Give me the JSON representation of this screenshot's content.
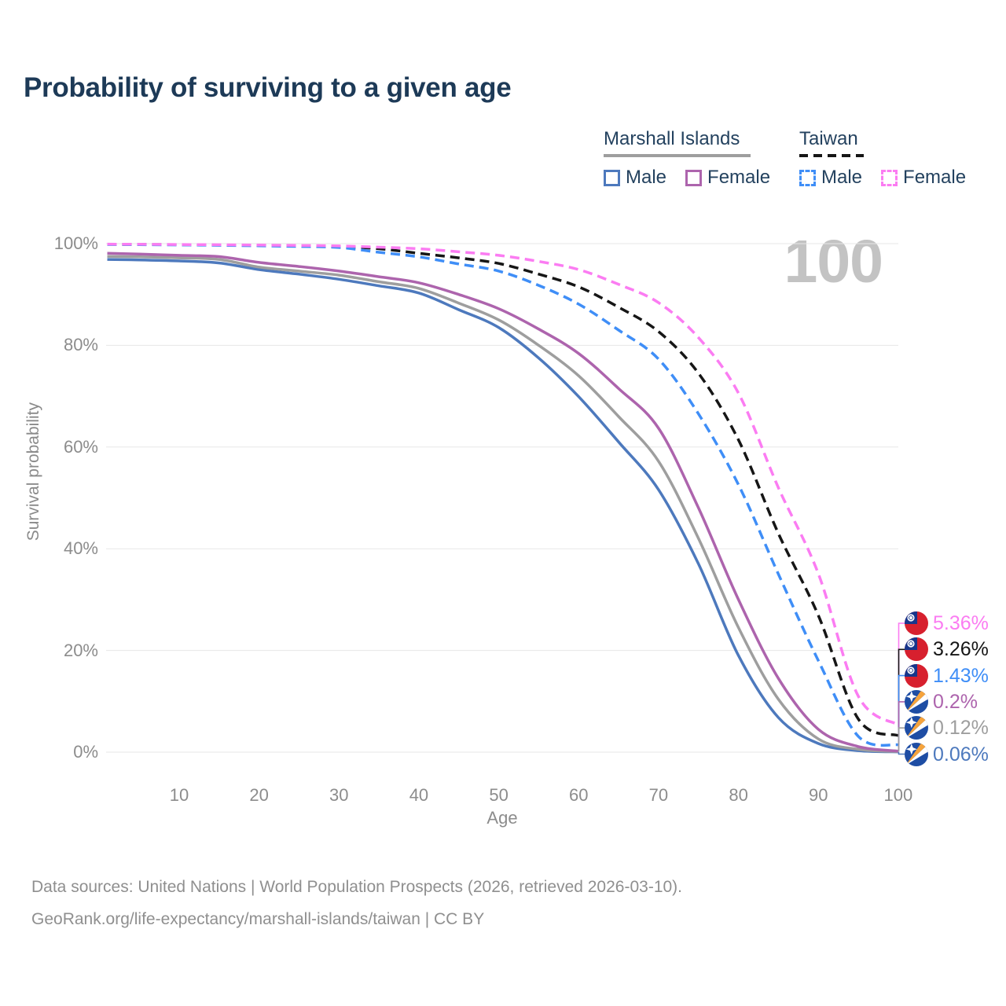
{
  "watermark": "100",
  "legend": {
    "groups": [
      {
        "label": "Marshall Islands",
        "line_style": "solid",
        "line_color": "#9e9e9e",
        "items": [
          {
            "label": "Male",
            "color": "#4d79bd"
          },
          {
            "label": "Female",
            "color": "#ad64ad"
          }
        ]
      },
      {
        "label": "Taiwan",
        "line_style": "dashed",
        "line_color": "#161616",
        "items": [
          {
            "label": "Male",
            "color": "#3f8ef7"
          },
          {
            "label": "Female",
            "color": "#fb7cf2"
          }
        ]
      }
    ]
  },
  "chart_data": {
    "type": "line",
    "title": "Probability of surviving to a given age",
    "xlabel": "Age",
    "ylabel": "Survival probability",
    "xlim": [
      0,
      100
    ],
    "ylim": [
      0,
      100
    ],
    "x_ticks": [
      10,
      20,
      30,
      40,
      50,
      60,
      70,
      80,
      90,
      100
    ],
    "y_ticks": [
      0,
      20,
      40,
      60,
      80,
      100
    ],
    "y_tick_suffix": "%",
    "grid": "horizontal",
    "legend_position": "top-right",
    "x": [
      1,
      5,
      10,
      15,
      20,
      25,
      30,
      35,
      40,
      45,
      50,
      55,
      60,
      65,
      70,
      75,
      80,
      85,
      90,
      95,
      100
    ],
    "series": [
      {
        "name": "Taiwan Both sexes",
        "country": "Taiwan",
        "sex": "Both sexes",
        "color": "#161616",
        "dashed": true,
        "flag": "taiwan",
        "end_label": "3.26%",
        "values": [
          99.87,
          99.84,
          99.8,
          99.74,
          99.66,
          99.56,
          99.42,
          99.0,
          98.1,
          97.2,
          96.1,
          94.0,
          91.5,
          87.5,
          82.7,
          74.5,
          61.4,
          43.0,
          26.9,
          6.5,
          3.26
        ]
      },
      {
        "name": "Taiwan Male",
        "country": "Taiwan",
        "sex": "Male",
        "color": "#3f8ef7",
        "dashed": true,
        "flag": "taiwan",
        "end_label": "1.43%",
        "values": [
          99.83,
          99.8,
          99.75,
          99.68,
          99.58,
          99.44,
          99.25,
          98.3,
          97.4,
          96.0,
          94.6,
          91.8,
          88.1,
          83.0,
          77.3,
          66.5,
          52.6,
          35.0,
          18.0,
          3.1,
          1.43
        ]
      },
      {
        "name": "Taiwan Female",
        "country": "Taiwan",
        "sex": "Female",
        "color": "#fb7cf2",
        "dashed": true,
        "flag": "taiwan",
        "end_label": "5.36%",
        "values": [
          99.9,
          99.87,
          99.83,
          99.78,
          99.72,
          99.65,
          99.55,
          99.3,
          99.0,
          98.4,
          97.7,
          96.5,
          94.9,
          92.0,
          88.4,
          81.5,
          70.6,
          52.0,
          35.1,
          11.0,
          5.36
        ]
      },
      {
        "name": "Marshall Islands Male",
        "country": "Marshall Islands",
        "sex": "Male",
        "color": "#4d79bd",
        "dashed": false,
        "flag": "marshall-islands",
        "end_label": "0.06%",
        "values": [
          96.9,
          96.8,
          96.6,
          96.2,
          94.9,
          94.0,
          93.0,
          91.7,
          90.3,
          87.0,
          83.5,
          77.5,
          69.9,
          61.0,
          51.6,
          37.0,
          19.0,
          6.8,
          1.7,
          0.3,
          0.06
        ]
      },
      {
        "name": "Marshall Islands Both sexes",
        "country": "Marshall Islands",
        "sex": "Both sexes",
        "color": "#9e9e9e",
        "dashed": false,
        "flag": "marshall-islands",
        "end_label": "0.12%",
        "values": [
          97.5,
          97.4,
          97.2,
          96.9,
          95.4,
          94.6,
          93.8,
          92.5,
          91.2,
          88.3,
          85.0,
          80.0,
          74.0,
          66.0,
          57.2,
          42.0,
          24.5,
          10.4,
          2.6,
          0.55,
          0.12
        ]
      },
      {
        "name": "Marshall Islands Female",
        "country": "Marshall Islands",
        "sex": "Female",
        "color": "#ad64ad",
        "dashed": false,
        "flag": "marshall-islands",
        "end_label": "0.2%",
        "values": [
          98.1,
          97.95,
          97.7,
          97.45,
          96.3,
          95.5,
          94.6,
          93.5,
          92.3,
          90.0,
          87.2,
          83.2,
          78.4,
          71.5,
          63.7,
          48.0,
          30.0,
          14.5,
          4.5,
          1.1,
          0.2
        ]
      }
    ]
  },
  "footer": {
    "line1": "Data sources: United Nations | World Population Prospects (2026, retrieved 2026-03-10).",
    "line2": "GeoRank.org/life-expectancy/marshall-islands/taiwan | CC BY"
  }
}
